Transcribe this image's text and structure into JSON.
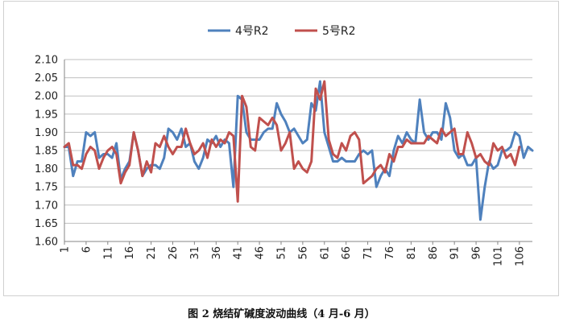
{
  "caption": "图 2 烧结矿碱度波动曲线（4 月-6 月）",
  "chart_data": {
    "type": "line",
    "title": "",
    "xlabel": "",
    "ylabel": "",
    "ylim": [
      1.6,
      2.1
    ],
    "yticks": [
      "1.60",
      "1.65",
      "1.70",
      "1.75",
      "1.80",
      "1.85",
      "1.90",
      "1.95",
      "2.00",
      "2.05",
      "2.10"
    ],
    "xlim": [
      1,
      109
    ],
    "xticks": [
      "1",
      "6",
      "11",
      "16",
      "21",
      "26",
      "31",
      "36",
      "41",
      "46",
      "51",
      "56",
      "61",
      "66",
      "71",
      "76",
      "81",
      "86",
      "91",
      "96",
      "101",
      "106"
    ],
    "grid": "horizontal",
    "legend": "top-center",
    "series": [
      {
        "name": "4号R2",
        "color": "#4f81bd",
        "values": [
          1.86,
          1.86,
          1.78,
          1.82,
          1.82,
          1.9,
          1.89,
          1.9,
          1.83,
          1.84,
          1.84,
          1.83,
          1.87,
          1.77,
          1.8,
          1.82,
          1.9,
          1.85,
          1.78,
          1.8,
          1.81,
          1.81,
          1.8,
          1.83,
          1.91,
          1.9,
          1.88,
          1.91,
          1.86,
          1.87,
          1.82,
          1.8,
          1.83,
          1.88,
          1.87,
          1.89,
          1.86,
          1.88,
          1.87,
          1.75,
          2.0,
          1.99,
          1.9,
          1.88,
          1.88,
          1.88,
          1.9,
          1.91,
          1.91,
          1.98,
          1.95,
          1.93,
          1.9,
          1.91,
          1.89,
          1.87,
          1.88,
          1.98,
          1.96,
          2.04,
          1.9,
          1.86,
          1.82,
          1.82,
          1.83,
          1.82,
          1.82,
          1.82,
          1.84,
          1.85,
          1.84,
          1.85,
          1.75,
          1.78,
          1.8,
          1.78,
          1.85,
          1.89,
          1.87,
          1.9,
          1.88,
          1.87,
          1.99,
          1.9,
          1.88,
          1.9,
          1.9,
          1.88,
          1.98,
          1.94,
          1.85,
          1.83,
          1.84,
          1.81,
          1.81,
          1.83,
          1.66,
          1.75,
          1.82,
          1.8,
          1.81,
          1.85,
          1.85,
          1.86,
          1.9,
          1.89,
          1.83,
          1.86,
          1.85
        ]
      },
      {
        "name": "5号R2",
        "color": "#c0504d",
        "values": [
          1.86,
          1.87,
          1.81,
          1.81,
          1.8,
          1.84,
          1.86,
          1.85,
          1.8,
          1.83,
          1.85,
          1.86,
          1.84,
          1.76,
          1.79,
          1.81,
          1.9,
          1.85,
          1.78,
          1.82,
          1.79,
          1.87,
          1.86,
          1.89,
          1.86,
          1.84,
          1.86,
          1.86,
          1.91,
          1.87,
          1.84,
          1.85,
          1.87,
          1.83,
          1.88,
          1.86,
          1.88,
          1.87,
          1.9,
          1.89,
          1.71,
          2.0,
          1.97,
          1.86,
          1.85,
          1.94,
          1.93,
          1.92,
          1.94,
          1.92,
          1.85,
          1.87,
          1.9,
          1.8,
          1.82,
          1.8,
          1.79,
          1.82,
          2.02,
          1.99,
          2.04,
          1.88,
          1.84,
          1.83,
          1.87,
          1.85,
          1.89,
          1.9,
          1.88,
          1.76,
          1.77,
          1.78,
          1.8,
          1.81,
          1.79,
          1.84,
          1.82,
          1.86,
          1.86,
          1.88,
          1.87,
          1.87,
          1.87,
          1.87,
          1.89,
          1.88,
          1.87,
          1.91,
          1.89,
          1.9,
          1.91,
          1.84,
          1.84,
          1.9,
          1.87,
          1.83,
          1.84,
          1.82,
          1.81,
          1.87,
          1.85,
          1.86,
          1.83,
          1.84,
          1.81,
          1.86
        ]
      }
    ]
  }
}
